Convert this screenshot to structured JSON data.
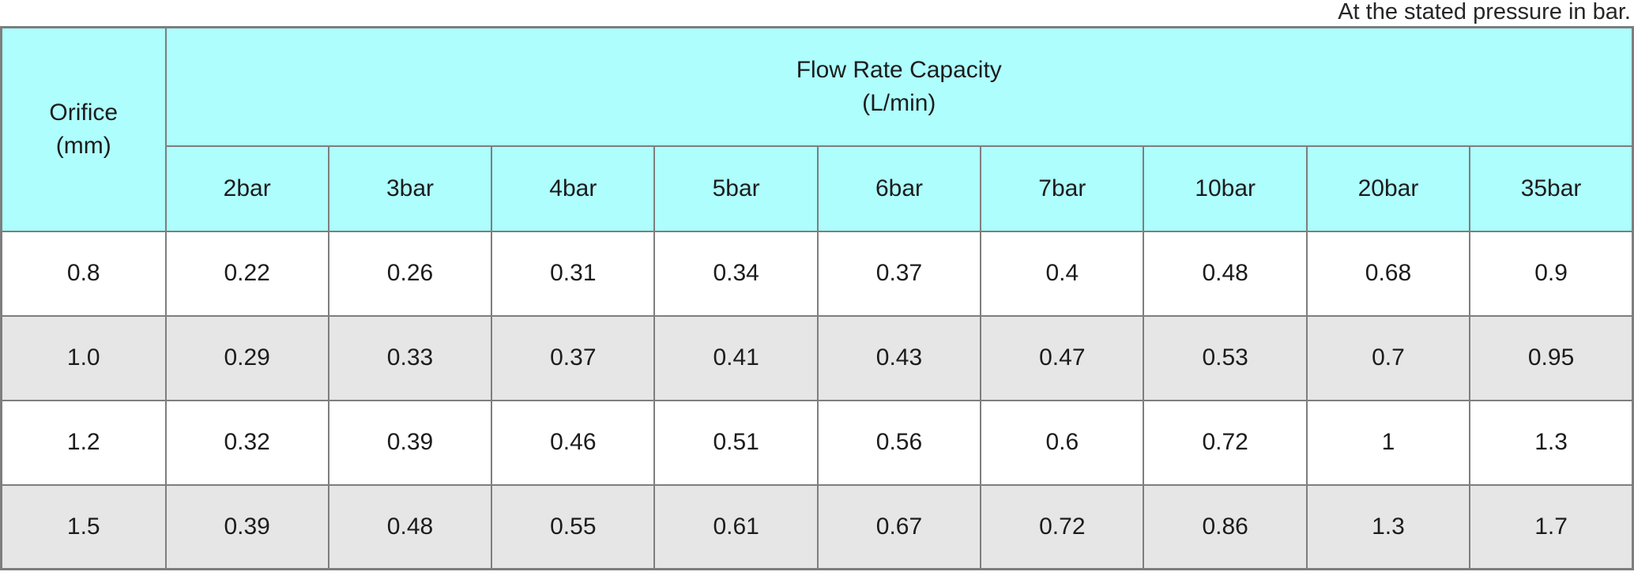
{
  "note": "At the stated pressure in bar.",
  "table": {
    "corner_header": {
      "line1": "Orifice",
      "line2": "(mm)"
    },
    "group_header": {
      "line1": "Flow Rate Capacity",
      "line2": "(L/min)"
    },
    "pressure_headers": [
      "2bar",
      "3bar",
      "4bar",
      "5bar",
      "6bar",
      "7bar",
      "10bar",
      "20bar",
      "35bar"
    ],
    "rows": [
      {
        "orifice": "0.8",
        "values": [
          "0.22",
          "0.26",
          "0.31",
          "0.34",
          "0.37",
          "0.4",
          "0.48",
          "0.68",
          "0.9"
        ]
      },
      {
        "orifice": "1.0",
        "values": [
          "0.29",
          "0.33",
          "0.37",
          "0.41",
          "0.43",
          "0.47",
          "0.53",
          "0.7",
          "0.95"
        ]
      },
      {
        "orifice": "1.2",
        "values": [
          "0.32",
          "0.39",
          "0.46",
          "0.51",
          "0.56",
          "0.6",
          "0.72",
          "1",
          "1.3"
        ]
      },
      {
        "orifice": "1.5",
        "values": [
          "0.39",
          "0.48",
          "0.55",
          "0.61",
          "0.67",
          "0.72",
          "0.86",
          "1.3",
          "1.7"
        ]
      }
    ]
  },
  "colors": {
    "header_bg": "#aefefe",
    "row_bg": "#ffffff",
    "row_alt_bg": "#e6e6e6",
    "border": "#7e7e7e",
    "text": "#1c1c1c"
  },
  "chart_data": {
    "type": "table",
    "title": "Flow Rate Capacity (L/min)",
    "row_axis_label": "Orifice (mm)",
    "columns": [
      "2bar",
      "3bar",
      "4bar",
      "5bar",
      "6bar",
      "7bar",
      "10bar",
      "20bar",
      "35bar"
    ],
    "rows": [
      {
        "orifice_mm": 0.8,
        "values": [
          0.22,
          0.26,
          0.31,
          0.34,
          0.37,
          0.4,
          0.48,
          0.68,
          0.9
        ]
      },
      {
        "orifice_mm": 1.0,
        "values": [
          0.29,
          0.33,
          0.37,
          0.41,
          0.43,
          0.47,
          0.53,
          0.7,
          0.95
        ]
      },
      {
        "orifice_mm": 1.2,
        "values": [
          0.32,
          0.39,
          0.46,
          0.51,
          0.56,
          0.6,
          0.72,
          1.0,
          1.3
        ]
      },
      {
        "orifice_mm": 1.5,
        "values": [
          0.39,
          0.48,
          0.55,
          0.61,
          0.67,
          0.72,
          0.86,
          1.3,
          1.7
        ]
      }
    ],
    "note": "At the stated pressure in bar."
  }
}
